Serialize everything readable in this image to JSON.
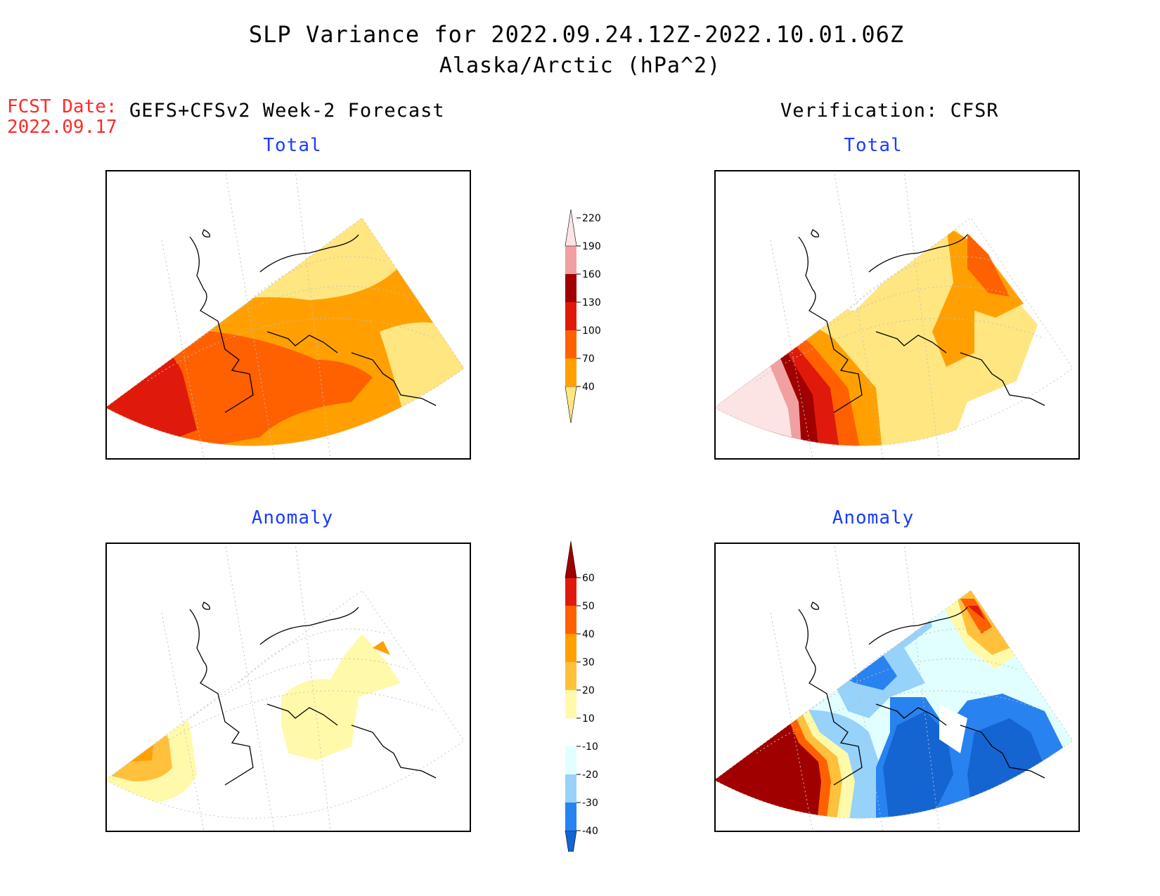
{
  "title": "SLP Variance for 2022.09.24.12Z-2022.10.01.06Z",
  "subtitle": "Alaska/Arctic (hPa^2)",
  "fcst_date": {
    "label": "FCST Date:",
    "value": "2022.09.17"
  },
  "forecast_header": "GEFS+CFSv2 Week-2 Forecast",
  "verification_header": "Verification: CFSR",
  "panels": {
    "forecast_total": {
      "title": "Total"
    },
    "verification_total": {
      "title": "Total"
    },
    "forecast_anomaly": {
      "title": "Anomaly"
    },
    "verification_anomaly": {
      "title": "Anomaly"
    }
  },
  "total_colorbar": {
    "labels": [
      "40",
      "70",
      "100",
      "130",
      "160",
      "190",
      "220"
    ],
    "colors": [
      "#ffe680",
      "#ffa000",
      "#ff6000",
      "#e01a0a",
      "#a00000",
      "#f0a0a0",
      "#fde4e4"
    ]
  },
  "anomaly_colorbar": {
    "labels": [
      "-40",
      "-30",
      "-20",
      "-10",
      "10",
      "20",
      "30",
      "40",
      "50",
      "60"
    ],
    "colors": [
      "#1464d2",
      "#2882f0",
      "#96d2fa",
      "#e1ffff",
      "#ffffff",
      "#fffaaa",
      "#ffc03c",
      "#ffa000",
      "#ff6000",
      "#e01a0a",
      "#a00000"
    ]
  }
}
